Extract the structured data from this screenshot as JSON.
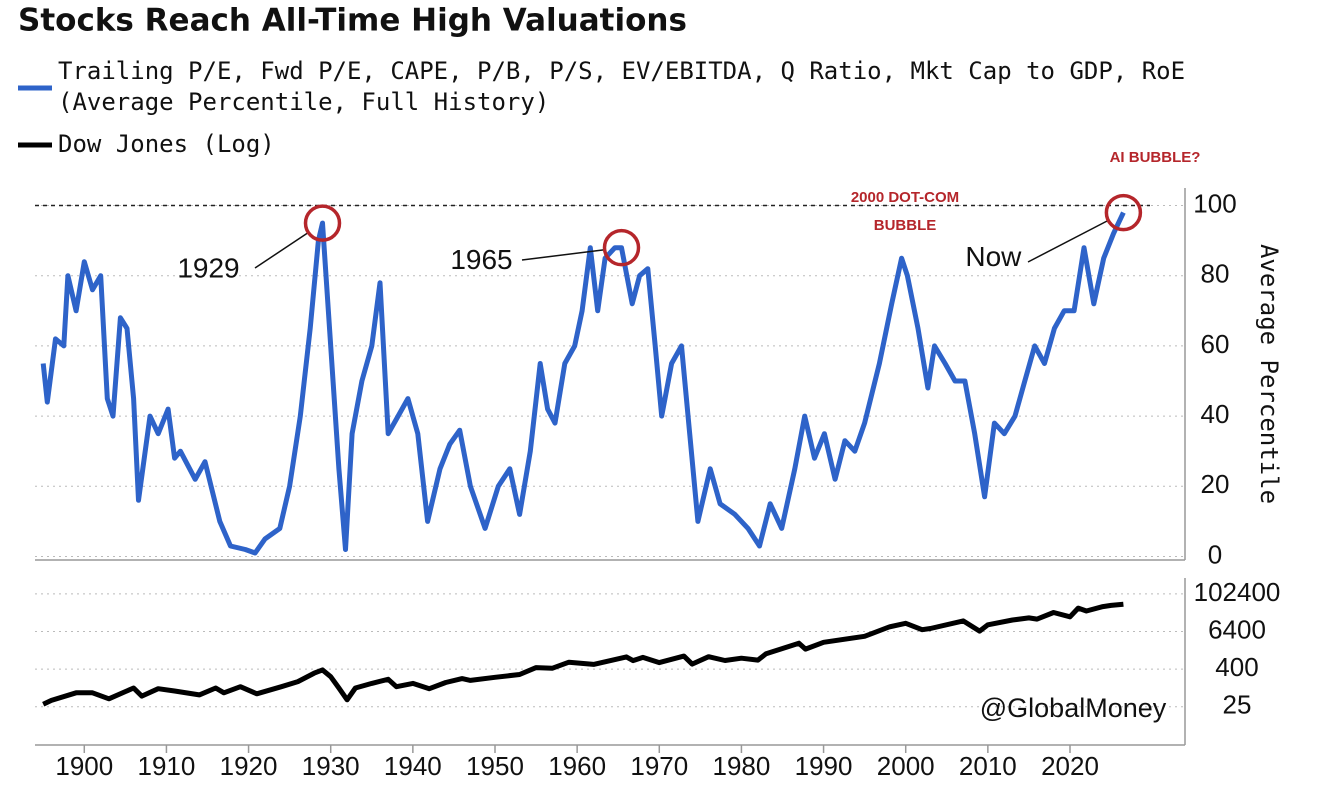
{
  "chart_data": [
    {
      "type": "line",
      "title": "Stocks Reach All-Time High Valuations",
      "y_axis_label": "Average Percentile",
      "x": [
        1895,
        1895.5,
        1896.5,
        1897.5,
        1898,
        1899,
        1900,
        1901,
        1902,
        1902.8,
        1903.5,
        1904.4,
        1905.2,
        1906,
        1906.6,
        1908,
        1909,
        1910.2,
        1911,
        1911.7,
        1913.5,
        1914.7,
        1916.5,
        1917.8,
        1919.6,
        1920.8,
        1922,
        1923.8,
        1925,
        1926.3,
        1927.5,
        1928.5,
        1929,
        1930,
        1931,
        1931.8,
        1932.6,
        1933.8,
        1935,
        1936,
        1937,
        1938.2,
        1939.4,
        1940.6,
        1941.8,
        1943.3,
        1944.5,
        1945.7,
        1947,
        1948.8,
        1950.4,
        1951.8,
        1953,
        1954.3,
        1955.5,
        1956.4,
        1957.3,
        1958.5,
        1959.7,
        1960.6,
        1961.6,
        1962.5,
        1963.4,
        1964.6,
        1965.4,
        1966.7,
        1967.6,
        1968.6,
        1969.5,
        1970.3,
        1971.5,
        1972.7,
        1973.7,
        1974.7,
        1976.2,
        1977.4,
        1979.2,
        1980.8,
        1982.2,
        1983.5,
        1984.9,
        1986.5,
        1987.7,
        1988.9,
        1990.1,
        1991.4,
        1992.6,
        1993.8,
        1995,
        1996.8,
        1998.3,
        1999.5,
        2000.2,
        2001.5,
        2002.7,
        2003.5,
        2004.8,
        2006,
        2007.2,
        2008.4,
        2009.6,
        2010.8,
        2012,
        2013.3,
        2014.5,
        2015.7,
        2016.9,
        2018.1,
        2019.3,
        2020.5,
        2021.7,
        2022.9,
        2024.1,
        2025.3,
        2026.5
      ],
      "series": [
        {
          "name": "Trailing P/E, Fwd P/E, CAPE, P/B, P/S, EV/EBITDA, Q Ratio, Mkt Cap to GDP, RoE",
          "name_detail": "(Average Percentile, Full History)",
          "color": "#2e63c9",
          "values": [
            55,
            44,
            62,
            60,
            80,
            70,
            84,
            76,
            80,
            45,
            40,
            68,
            65,
            45,
            16,
            40,
            35,
            42,
            28,
            30,
            22,
            27,
            10,
            3,
            2,
            1,
            5,
            8,
            20,
            40,
            65,
            90,
            95,
            60,
            25,
            2,
            35,
            50,
            60,
            78,
            35,
            40,
            45,
            35,
            10,
            25,
            32,
            36,
            20,
            8,
            20,
            25,
            12,
            30,
            55,
            42,
            38,
            55,
            60,
            70,
            88,
            70,
            85,
            88,
            88,
            72,
            80,
            82,
            60,
            40,
            55,
            60,
            35,
            10,
            25,
            15,
            12,
            8,
            3,
            15,
            8,
            25,
            40,
            28,
            35,
            22,
            33,
            30,
            38,
            55,
            72,
            85,
            80,
            65,
            48,
            60,
            55,
            50,
            50,
            35,
            17,
            38,
            35,
            40,
            50,
            60,
            55,
            65,
            70,
            70,
            88,
            72,
            85,
            92,
            98
          ]
        }
      ],
      "xlim": [
        1894,
        2034
      ],
      "ylim": [
        -1,
        105
      ],
      "yticks": [
        0,
        20,
        40,
        60,
        80,
        100
      ],
      "grid": true,
      "reference_line": 100,
      "annotations": [
        {
          "text": "1929",
          "x": 1929,
          "y": 95
        },
        {
          "text": "1965",
          "x": 1965.4,
          "y": 88
        },
        {
          "text": "Now",
          "x": 2026.5,
          "y": 98
        }
      ],
      "callouts": [
        "2000 DOT-COM",
        "BUBBLE",
        "AI BUBBLE?"
      ]
    },
    {
      "type": "line",
      "log_scale": true,
      "x": [
        1895,
        1896,
        1899,
        1901,
        1903,
        1906,
        1907,
        1909,
        1911,
        1914,
        1916,
        1917,
        1919,
        1921,
        1924,
        1926,
        1928,
        1929,
        1930,
        1931,
        1932,
        1933,
        1935,
        1937,
        1938,
        1940,
        1942,
        1944,
        1946,
        1947,
        1950,
        1953,
        1955,
        1957,
        1959,
        1962,
        1966,
        1966.8,
        1968,
        1970,
        1973,
        1974,
        1976,
        1978,
        1980,
        1982,
        1983,
        1987,
        1987.8,
        1990,
        1995,
        1998,
        2000,
        2002,
        2003,
        2007,
        2009,
        2010,
        2013,
        2015,
        2016,
        2018,
        2020,
        2021,
        2022,
        2024,
        2025,
        2026.5
      ],
      "series": [
        {
          "name": "Dow Jones (Log)",
          "color": "#000000",
          "values": [
            30,
            40,
            70,
            70,
            45,
            100,
            55,
            95,
            80,
            60,
            100,
            70,
            110,
            65,
            110,
            160,
            300,
            380,
            230,
            100,
            42,
            100,
            140,
            190,
            110,
            140,
            95,
            150,
            200,
            175,
            220,
            270,
            450,
            430,
            670,
            570,
            990,
            750,
            950,
            650,
            1050,
            580,
            1000,
            760,
            900,
            780,
            1250,
            2700,
            1750,
            2900,
            4500,
            9000,
            11700,
            7300,
            8000,
            14000,
            6600,
            10500,
            15000,
            17500,
            16000,
            26000,
            19000,
            36000,
            29000,
            40000,
            44000,
            48000
          ]
        }
      ],
      "xlim": [
        1894,
        2034
      ],
      "ylim": [
        1.5,
        330000
      ],
      "yticks": [
        25,
        400,
        6400,
        102400
      ],
      "xticks": [
        1900,
        1910,
        1920,
        1930,
        1940,
        1950,
        1960,
        1970,
        1980,
        1990,
        2000,
        2010,
        2020
      ],
      "grid": true,
      "watermark": "@GlobalMoney"
    }
  ]
}
